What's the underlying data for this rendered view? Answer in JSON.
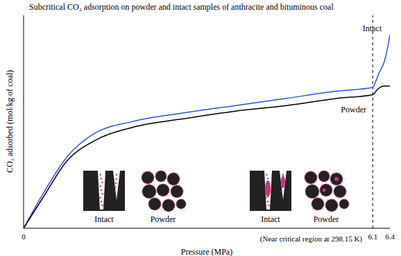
{
  "chart_data": {
    "type": "line",
    "title": "Subcritical CO₂ adsorption on powder and intact samples of anthracite and bituminous coal",
    "x_label": "Pressure (MPa)",
    "y_label": "CO₂ adsorbed (mol/kg of coal)",
    "x": [
      0,
      0.32,
      0.77,
      1.21,
      1.92,
      2.81,
      3.7,
      4.59,
      5.48,
      6.1,
      6.16,
      6.21,
      6.3,
      6.36,
      6.4
    ],
    "series": [
      {
        "name": "Intact",
        "color": "#2f52d6",
        "values": [
          0,
          1.53,
          3.39,
          4.41,
          5.02,
          5.42,
          5.76,
          6.1,
          6.44,
          6.61,
          6.95,
          7.29,
          7.8,
          8.47,
          9.08
        ]
      },
      {
        "name": "Powder",
        "color": "#000000",
        "values": [
          0,
          1.36,
          3.2,
          4.07,
          4.75,
          5.15,
          5.5,
          5.76,
          6.1,
          6.27,
          6.45,
          6.58,
          6.68,
          6.68,
          6.68
        ]
      }
    ],
    "xlim": [
      0,
      6.4
    ],
    "xticks": [
      0,
      6.1,
      6.4
    ],
    "ylim": [
      0,
      10
    ],
    "yticks": [],
    "tick_labels": "x",
    "vline": 6.1,
    "illustration_labels": [
      "Intact",
      "Powder",
      "Intact",
      "Powder"
    ],
    "annotation": "(Near critical region at 298.15 K)"
  }
}
